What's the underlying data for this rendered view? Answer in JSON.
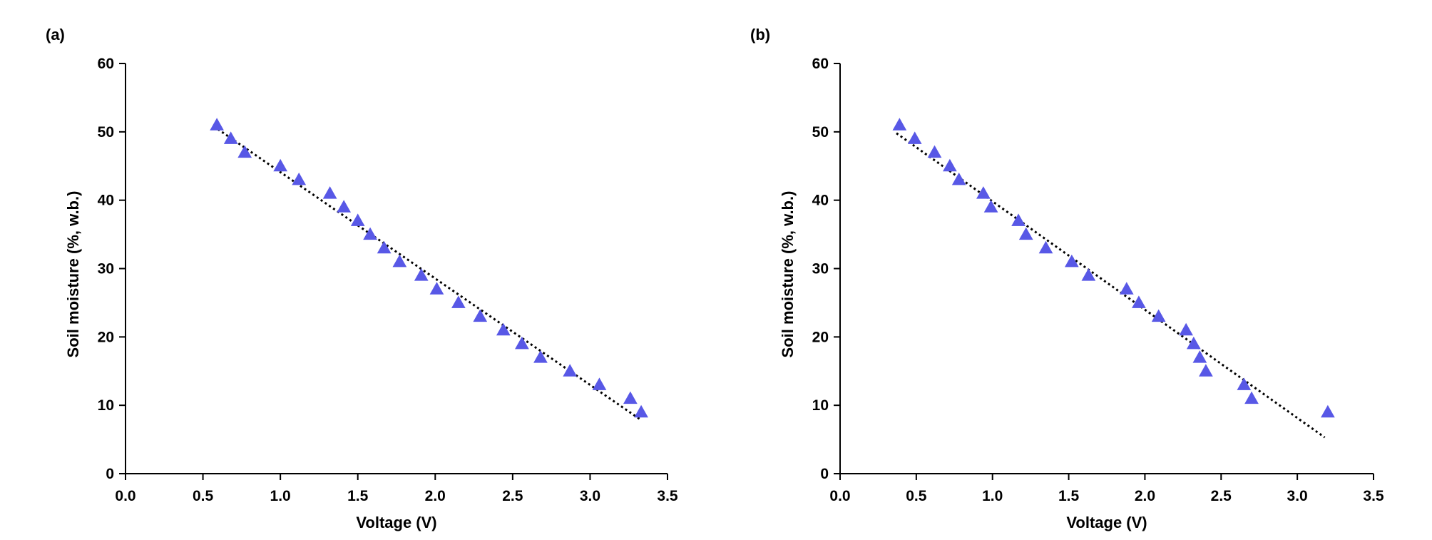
{
  "colors": {
    "marker": "#5858E6",
    "trend": "#000000",
    "axis": "#000000"
  },
  "chart_data": [
    {
      "type": "scatter",
      "panel_label": "(a)",
      "xlabel": "Voltage (V)",
      "ylabel": "Soil moisture (%, w.b.)",
      "xlim": [
        0.0,
        3.5
      ],
      "ylim": [
        0,
        60
      ],
      "xticks": [
        "0.0",
        "0.5",
        "1.0",
        "1.5",
        "2.0",
        "2.5",
        "3.0",
        "3.5"
      ],
      "yticks": [
        "0",
        "10",
        "20",
        "30",
        "40",
        "50",
        "60"
      ],
      "grid": false,
      "marker": "triangle",
      "points": [
        [
          0.59,
          51
        ],
        [
          0.68,
          49
        ],
        [
          0.77,
          47
        ],
        [
          1.0,
          45
        ],
        [
          1.12,
          43
        ],
        [
          1.32,
          41
        ],
        [
          1.41,
          39
        ],
        [
          1.5,
          37
        ],
        [
          1.58,
          35
        ],
        [
          1.67,
          33
        ],
        [
          1.77,
          31
        ],
        [
          1.91,
          29
        ],
        [
          2.01,
          27
        ],
        [
          2.15,
          25
        ],
        [
          2.29,
          23
        ],
        [
          2.44,
          21
        ],
        [
          2.56,
          19
        ],
        [
          2.68,
          17
        ],
        [
          2.87,
          15
        ],
        [
          3.06,
          13
        ],
        [
          3.26,
          11
        ],
        [
          3.33,
          9
        ]
      ],
      "trendline": {
        "style": "dotted",
        "from": [
          0.57,
          50.8
        ],
        "to": [
          3.32,
          8.0
        ]
      }
    },
    {
      "type": "scatter",
      "panel_label": "(b)",
      "xlabel": "Voltage (V)",
      "ylabel": "Soil moisture (%, w.b.)",
      "xlim": [
        0.0,
        3.5
      ],
      "ylim": [
        0,
        60
      ],
      "xticks": [
        "0.0",
        "0.5",
        "1.0",
        "1.5",
        "2.0",
        "2.5",
        "3.0",
        "3.5"
      ],
      "yticks": [
        "0",
        "10",
        "20",
        "30",
        "40",
        "50",
        "60"
      ],
      "grid": false,
      "marker": "triangle",
      "points": [
        [
          0.39,
          51
        ],
        [
          0.49,
          49
        ],
        [
          0.62,
          47
        ],
        [
          0.72,
          45
        ],
        [
          0.78,
          43
        ],
        [
          0.94,
          41
        ],
        [
          0.99,
          39
        ],
        [
          1.17,
          37
        ],
        [
          1.22,
          35
        ],
        [
          1.35,
          33
        ],
        [
          1.52,
          31
        ],
        [
          1.63,
          29
        ],
        [
          1.88,
          27
        ],
        [
          1.96,
          25
        ],
        [
          2.09,
          23
        ],
        [
          2.27,
          21
        ],
        [
          2.32,
          19
        ],
        [
          2.36,
          17
        ],
        [
          2.4,
          15
        ],
        [
          2.65,
          13
        ],
        [
          2.7,
          11
        ],
        [
          3.2,
          9
        ]
      ],
      "trendline": {
        "style": "dotted",
        "from": [
          0.37,
          49.8
        ],
        "to": [
          3.18,
          5.3
        ]
      }
    }
  ]
}
